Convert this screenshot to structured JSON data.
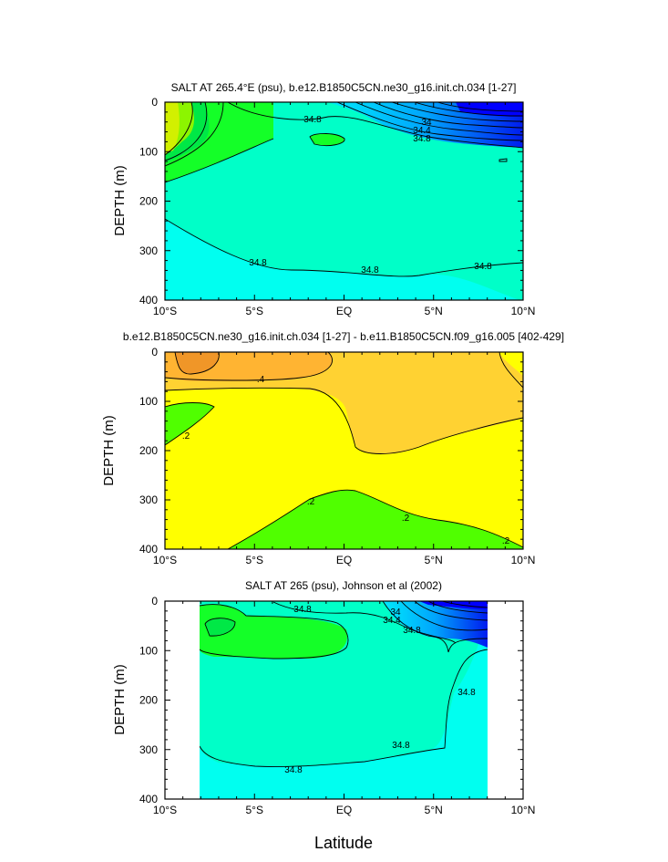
{
  "figure": {
    "xlabel": "Latitude",
    "ylabel": "DEPTH (m)"
  },
  "chart_data": [
    {
      "type": "contour",
      "title": "SALT AT 265.4°E (psu), b.e12.B1850C5CN.ne30_g16.init.ch.034 [1-27]",
      "xlabel": "",
      "ylabel": "DEPTH (m)",
      "xlim": [
        -10,
        10
      ],
      "ylim": [
        400,
        0
      ],
      "xticks": [
        "10°S",
        "5°S",
        "EQ",
        "5°N",
        "10°N"
      ],
      "yticks": [
        "0",
        "100",
        "200",
        "300",
        "400"
      ],
      "contour_labels": [
        "34.8",
        "34",
        "34.4",
        "34.8",
        "34.8",
        "34.8",
        "34.8"
      ],
      "colors": [
        "#a0f000",
        "#14ff28",
        "#00ffc8",
        "#00fff0",
        "#00d8ff",
        "#0090ff",
        "#0000ff"
      ]
    },
    {
      "type": "contour",
      "title": "b.e12.B1850C5CN.ne30_g16.init.ch.034 [1-27] - b.e11.B1850C5CN.f09_g16.005 [402-429]",
      "xlabel": "",
      "ylabel": "DEPTH (m)",
      "xlim": [
        -10,
        10
      ],
      "ylim": [
        400,
        0
      ],
      "xticks": [
        "10°S",
        "5°S",
        "EQ",
        "5°N",
        "10°N"
      ],
      "yticks": [
        "0",
        "100",
        "200",
        "300",
        "400"
      ],
      "contour_labels": [
        ".4",
        ".2",
        ".2",
        ".2",
        ".2"
      ],
      "colors": [
        "#f09628",
        "#ffb432",
        "#ffd232",
        "#ffff00",
        "#50ff00"
      ]
    },
    {
      "type": "contour",
      "title": "SALT AT 265 (psu), Johnson et al (2002)",
      "xlabel": "Latitude",
      "ylabel": "DEPTH (m)",
      "xlim": [
        -10,
        10
      ],
      "ylim": [
        400,
        0
      ],
      "xticks": [
        "10°S",
        "5°S",
        "EQ",
        "5°N",
        "10°N"
      ],
      "yticks": [
        "0",
        "100",
        "200",
        "300",
        "400"
      ],
      "data_extent_x": [
        -8,
        8
      ],
      "contour_labels": [
        "34.8",
        "34",
        "34.4",
        "34.8",
        "34.8",
        "34.8"
      ],
      "colors": [
        "#14ff28",
        "#00ffc8",
        "#00fff0",
        "#0090ff",
        "#0000ff"
      ]
    }
  ]
}
